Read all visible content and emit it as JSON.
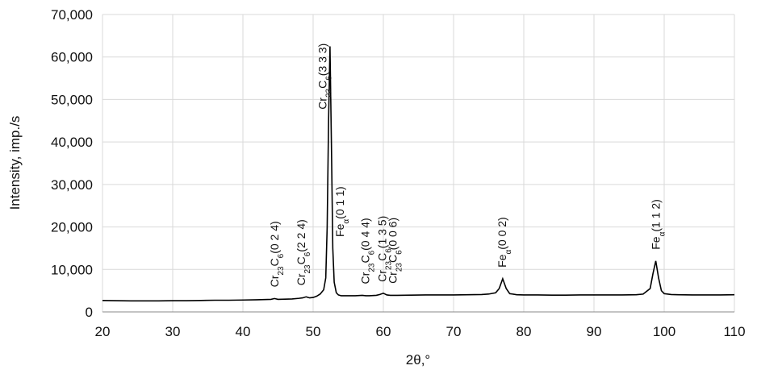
{
  "chart_data": {
    "type": "line",
    "y_label": "Intensity, imp./s",
    "x_label": "2θ,°",
    "x": [
      20,
      22,
      24,
      26,
      28,
      30,
      32,
      34,
      36,
      38,
      40,
      42,
      43,
      44,
      44.5,
      45,
      46,
      47,
      48,
      48.5,
      49,
      49.5,
      50,
      50.5,
      51,
      51.5,
      51.8,
      52,
      52.2,
      52.4,
      52.6,
      52.8,
      53,
      53.3,
      53.6,
      54,
      55,
      56,
      57,
      57.5,
      58,
      59,
      59.5,
      60,
      60.5,
      61,
      62,
      64,
      66,
      68,
      70,
      72,
      74,
      75,
      76,
      76.5,
      77,
      77.5,
      78,
      79,
      80,
      82,
      84,
      86,
      88,
      90,
      92,
      94,
      96,
      97,
      98,
      98.4,
      98.8,
      99.2,
      99.6,
      100,
      101,
      102,
      104,
      106,
      108,
      110
    ],
    "series": [
      {
        "color": "#000000",
        "values": [
          2700,
          2650,
          2600,
          2600,
          2600,
          2650,
          2650,
          2700,
          2750,
          2750,
          2800,
          2850,
          2900,
          2950,
          3150,
          2950,
          3000,
          3050,
          3200,
          3300,
          3550,
          3300,
          3400,
          3700,
          4200,
          5200,
          8000,
          20000,
          45000,
          62500,
          40000,
          15000,
          7000,
          4500,
          4000,
          3800,
          3800,
          3800,
          3900,
          3800,
          3800,
          3900,
          4100,
          4400,
          4000,
          3900,
          3900,
          3950,
          4000,
          4000,
          4000,
          4050,
          4100,
          4200,
          4500,
          5500,
          7800,
          5500,
          4300,
          4050,
          4000,
          4000,
          3950,
          3950,
          4000,
          4000,
          4000,
          4000,
          4050,
          4200,
          5500,
          9000,
          12000,
          8000,
          5000,
          4300,
          4100,
          4050,
          4000,
          4000,
          4000,
          4050
        ]
      }
    ],
    "xlim": [
      20,
      110
    ],
    "xticks": [
      20,
      30,
      40,
      50,
      60,
      70,
      80,
      90,
      100,
      110
    ],
    "ylim": [
      0,
      70000
    ],
    "yticks": [
      0,
      {
        "value": 10000,
        "label": "10,000"
      },
      {
        "value": 20000,
        "label": "20,000"
      },
      {
        "value": 30000,
        "label": "30,000"
      },
      {
        "value": 40000,
        "label": "40,000"
      },
      {
        "value": 50000,
        "label": "50,000"
      },
      {
        "value": 60000,
        "label": "60,000"
      },
      {
        "value": 70000,
        "label": "70,000"
      }
    ],
    "grid": true,
    "annotations": [
      {
        "x": 44.5,
        "parts": [
          "Cr",
          "23",
          "C",
          "6",
          "(0 2 4)"
        ]
      },
      {
        "x": 48.3,
        "parts": [
          "Cr",
          "23",
          "C",
          "6",
          "(2 2 4)"
        ]
      },
      {
        "x": 51.3,
        "parts": [
          "Cr",
          "23",
          "C",
          "6",
          "(3 3 3)"
        ]
      },
      {
        "x": 53.8,
        "parts": [
          "Fe",
          "α",
          "(0 1 1)"
        ]
      },
      {
        "x": 57.4,
        "parts": [
          "Cr",
          "23",
          "C",
          "6",
          "(0 4 4)"
        ]
      },
      {
        "x": 59.8,
        "parts": [
          "Cr",
          "23",
          "C",
          "6",
          "(1 3 5)"
        ]
      },
      {
        "x": 61.3,
        "parts": [
          "Cr",
          "23",
          "C",
          "6",
          "(0 0 6)"
        ]
      },
      {
        "x": 76.9,
        "parts": [
          "Fe",
          "α",
          "(0 0 2)"
        ]
      },
      {
        "x": 98.8,
        "parts": [
          "Fe",
          "α",
          "(1 1 2)"
        ]
      }
    ]
  }
}
